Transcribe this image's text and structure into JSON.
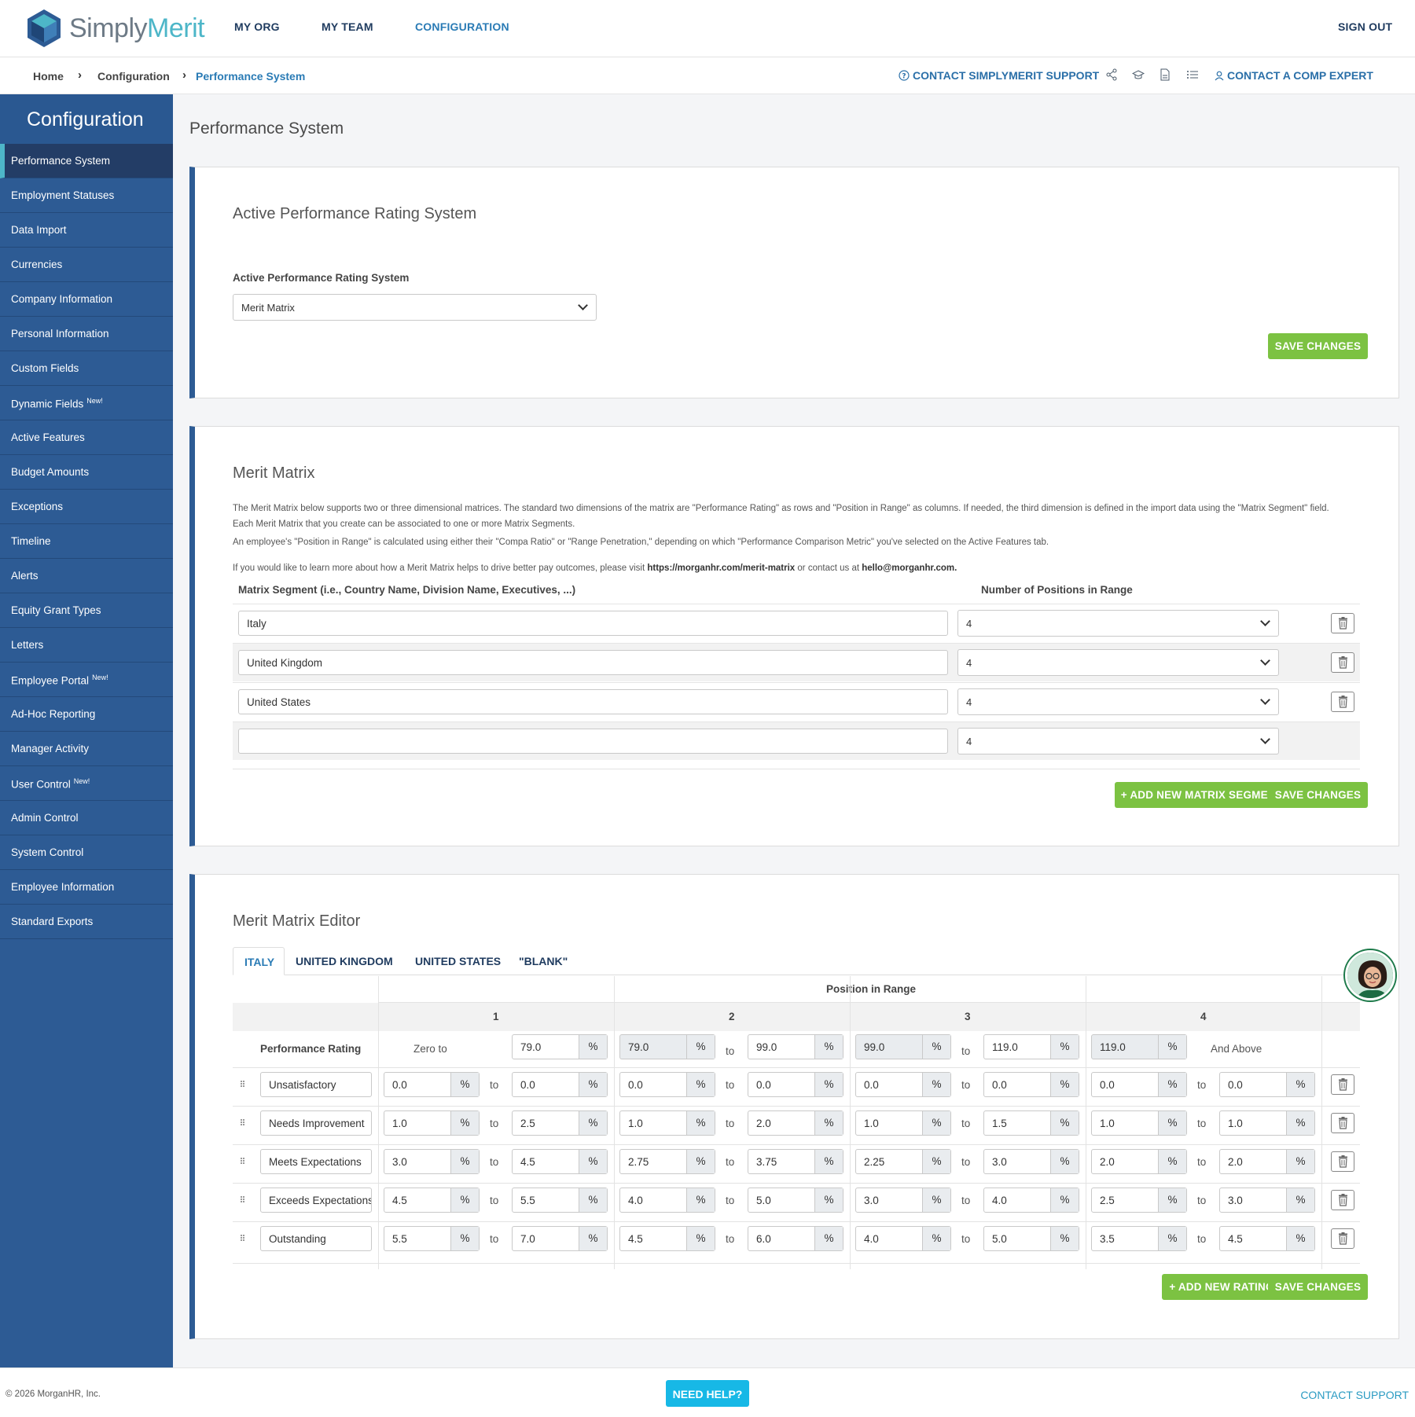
{
  "brand": {
    "name_a": "Simply",
    "name_b": "Merit"
  },
  "nav": {
    "my_org": "MY ORG",
    "my_team": "MY TEAM",
    "configuration": "CONFIGURATION",
    "sign_out": "SIGN OUT"
  },
  "breadcrumb": {
    "home": "Home",
    "configuration": "Configuration",
    "current": "Performance System"
  },
  "toolbar": {
    "support": "CONTACT SIMPLYMERIT SUPPORT",
    "comp_expert": "CONTACT A COMP EXPERT"
  },
  "sidebar": {
    "title": "Configuration",
    "items": [
      {
        "label": "Performance System",
        "badge": ""
      },
      {
        "label": "Employment Statuses",
        "badge": ""
      },
      {
        "label": "Data Import",
        "badge": ""
      },
      {
        "label": "Currencies",
        "badge": ""
      },
      {
        "label": "Company Information",
        "badge": ""
      },
      {
        "label": "Personal Information",
        "badge": ""
      },
      {
        "label": "Custom Fields",
        "badge": ""
      },
      {
        "label": "Dynamic Fields",
        "badge": "New!"
      },
      {
        "label": "Active Features",
        "badge": ""
      },
      {
        "label": "Budget Amounts",
        "badge": ""
      },
      {
        "label": "Exceptions",
        "badge": ""
      },
      {
        "label": "Timeline",
        "badge": ""
      },
      {
        "label": "Alerts",
        "badge": ""
      },
      {
        "label": "Equity Grant Types",
        "badge": ""
      },
      {
        "label": "Letters",
        "badge": ""
      },
      {
        "label": "Employee Portal",
        "badge": "New!"
      },
      {
        "label": "Ad-Hoc Reporting",
        "badge": ""
      },
      {
        "label": "Manager Activity",
        "badge": ""
      },
      {
        "label": "User Control",
        "badge": "New!"
      },
      {
        "label": "Admin Control",
        "badge": ""
      },
      {
        "label": "System Control",
        "badge": ""
      },
      {
        "label": "Employee Information",
        "badge": ""
      },
      {
        "label": "Standard Exports",
        "badge": ""
      }
    ]
  },
  "page_title": "Performance System",
  "active_system": {
    "heading": "Active Performance Rating System",
    "field_label": "Active Performance Rating System",
    "selected": "Merit Matrix",
    "save": "SAVE CHANGES"
  },
  "merit_matrix": {
    "heading": "Merit Matrix",
    "p1": "The Merit Matrix below supports two or three dimensional matrices. The standard two dimensions of the matrix are \"Performance Rating\" as rows and \"Position in Range\" as columns. If needed, the third dimension is defined in the import data using the \"Matrix Segment\" field. Each Merit Matrix that you create can be associated to one or more Matrix Segments.",
    "p2": "An employee's \"Position in Range\" is calculated using either their \"Compa Ratio\" or \"Range Penetration,\" depending on which \"Performance Comparison Metric\" you've selected on the Active Features tab.",
    "p3_a": "If you would like to learn more about how a Merit Matrix helps to drive better pay outcomes, please visit ",
    "p3_link": "https://morganhr.com/merit-matrix",
    "p3_b": " or contact us at ",
    "p3_email": "hello@morganhr.com.",
    "col_segment": "Matrix Segment (i.e., Country Name, Division Name, Executives, ...)",
    "col_positions": "Number of Positions in Range",
    "segments": [
      {
        "name": "Italy",
        "positions": "4"
      },
      {
        "name": "United Kingdom",
        "positions": "4"
      },
      {
        "name": "United States",
        "positions": "4"
      },
      {
        "name": "",
        "positions": "4"
      }
    ],
    "add": "+ ADD NEW MATRIX SEGMENT",
    "save": "SAVE CHANGES"
  },
  "editor": {
    "heading": "Merit Matrix Editor",
    "tabs": [
      "ITALY",
      "UNITED KINGDOM",
      "UNITED STATES",
      "\"BLANK\""
    ],
    "position_in_range": "Position in Range",
    "col_numbers": [
      "1",
      "2",
      "3",
      "4"
    ],
    "rating_header": "Performance Rating",
    "zero_to": "Zero to",
    "and_above": "And Above",
    "to": "to",
    "pct": "%",
    "bounds": [
      "79.0",
      "79.0",
      "99.0",
      "99.0",
      "119.0",
      "119.0"
    ],
    "rows": [
      {
        "name": "Unsatisfactory",
        "vals": [
          "0.0",
          "0.0",
          "0.0",
          "0.0",
          "0.0",
          "0.0",
          "0.0",
          "0.0"
        ]
      },
      {
        "name": "Needs Improvement",
        "vals": [
          "1.0",
          "2.5",
          "1.0",
          "2.0",
          "1.0",
          "1.5",
          "1.0",
          "1.0"
        ]
      },
      {
        "name": "Meets Expectations",
        "vals": [
          "3.0",
          "4.5",
          "2.75",
          "3.75",
          "2.25",
          "3.0",
          "2.0",
          "2.0"
        ]
      },
      {
        "name": "Exceeds Expectations",
        "vals": [
          "4.5",
          "5.5",
          "4.0",
          "5.0",
          "3.0",
          "4.0",
          "2.5",
          "3.0"
        ]
      },
      {
        "name": "Outstanding",
        "vals": [
          "5.5",
          "7.0",
          "4.5",
          "6.0",
          "4.0",
          "5.0",
          "3.5",
          "4.5"
        ]
      }
    ],
    "add": "+ ADD NEW RATING",
    "save": "SAVE CHANGES"
  },
  "footer": {
    "copyright": "© 2026 MorganHR, Inc.",
    "need_help": "NEED HELP?",
    "contact": "CONTACT SUPPORT"
  },
  "colors": {
    "accent": "#2d5b94",
    "green": "#7cc242",
    "teal": "#4db6c8",
    "help": "#17b8e6"
  }
}
